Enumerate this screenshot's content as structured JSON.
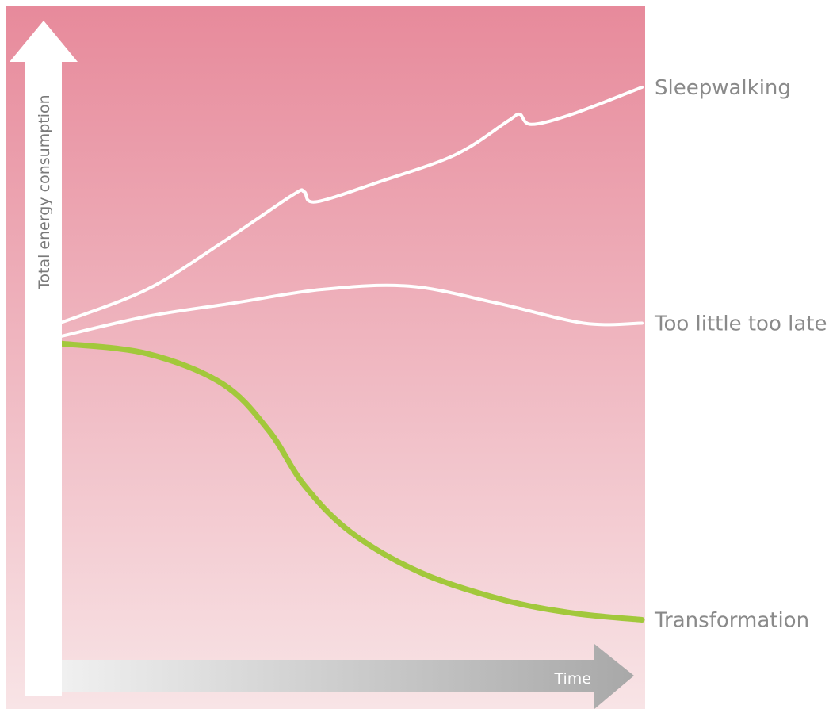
{
  "chart_data": {
    "type": "line",
    "title": "",
    "xlabel": "Time",
    "ylabel": "Total energy consumption",
    "colors": {
      "background_top": "#e78a9b",
      "background_bottom": "#f8e4e6",
      "line_white": "#ffffff",
      "line_green": "#a2c83b",
      "x_arrow_start": "#f0f0f0",
      "x_arrow_end": "#a8a8a8",
      "label": "#8a8a8a"
    },
    "series": [
      {
        "name": "Sleepwalking",
        "color": "#ffffff",
        "points": [
          [
            0.0,
            0.55
          ],
          [
            0.15,
            0.6
          ],
          [
            0.28,
            0.67
          ],
          [
            0.4,
            0.74
          ],
          [
            0.42,
            0.745
          ],
          [
            0.44,
            0.73
          ],
          [
            0.55,
            0.76
          ],
          [
            0.68,
            0.8
          ],
          [
            0.77,
            0.85
          ],
          [
            0.79,
            0.86
          ],
          [
            0.81,
            0.845
          ],
          [
            0.88,
            0.86
          ],
          [
            1.0,
            0.9
          ]
        ]
      },
      {
        "name": "Too little too late",
        "color": "#ffffff",
        "points": [
          [
            0.0,
            0.53
          ],
          [
            0.15,
            0.56
          ],
          [
            0.3,
            0.58
          ],
          [
            0.45,
            0.6
          ],
          [
            0.6,
            0.605
          ],
          [
            0.75,
            0.58
          ],
          [
            0.9,
            0.55
          ],
          [
            1.0,
            0.55
          ]
        ]
      },
      {
        "name": "Transformation",
        "color": "#a2c83b",
        "points": [
          [
            0.0,
            0.52
          ],
          [
            0.15,
            0.505
          ],
          [
            0.28,
            0.46
          ],
          [
            0.36,
            0.39
          ],
          [
            0.42,
            0.31
          ],
          [
            0.5,
            0.24
          ],
          [
            0.62,
            0.18
          ],
          [
            0.76,
            0.14
          ],
          [
            0.88,
            0.12
          ],
          [
            1.0,
            0.11
          ]
        ]
      }
    ],
    "xlim": [
      0,
      1
    ],
    "ylim": [
      0,
      1
    ],
    "grid": false,
    "legend": "none"
  }
}
